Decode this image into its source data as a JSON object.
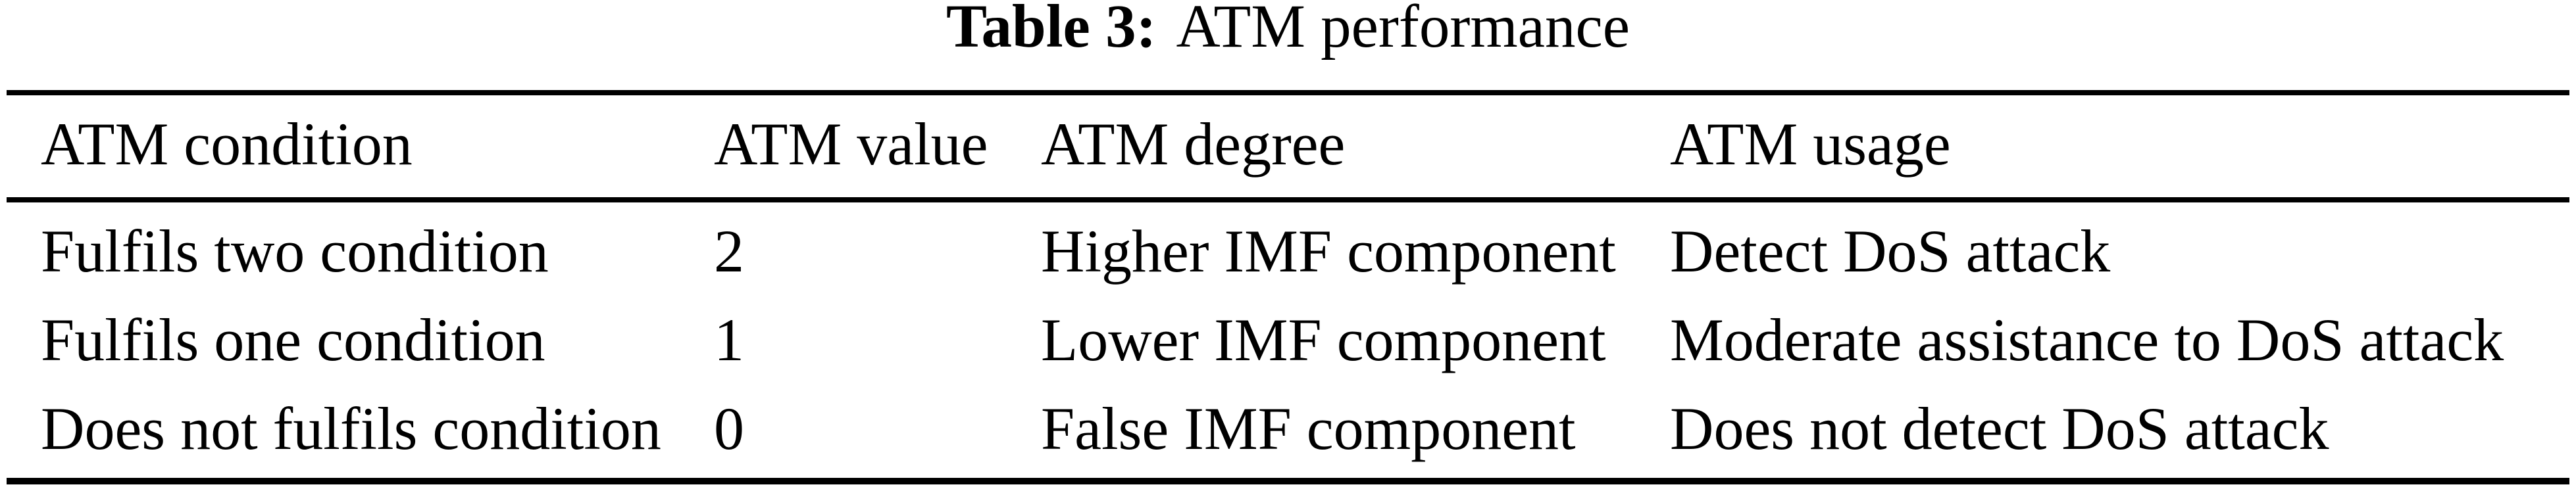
{
  "caption": {
    "label": "Table 3:",
    "title": "ATM performance"
  },
  "table": {
    "headers": [
      "ATM condition",
      "ATM value",
      "ATM degree",
      "ATM usage"
    ],
    "rows": [
      [
        "Fulfils two condition",
        "2",
        "Higher IMF component",
        "Detect DoS attack"
      ],
      [
        "Fulfils one condition",
        "1",
        "Lower IMF component",
        "Moderate assistance to DoS attack"
      ],
      [
        "Does not fulfils condition",
        "0",
        "False IMF component",
        "Does not detect DoS attack"
      ]
    ]
  },
  "colors": {
    "text": "#000000",
    "background": "#ffffff",
    "rule": "#000000"
  }
}
